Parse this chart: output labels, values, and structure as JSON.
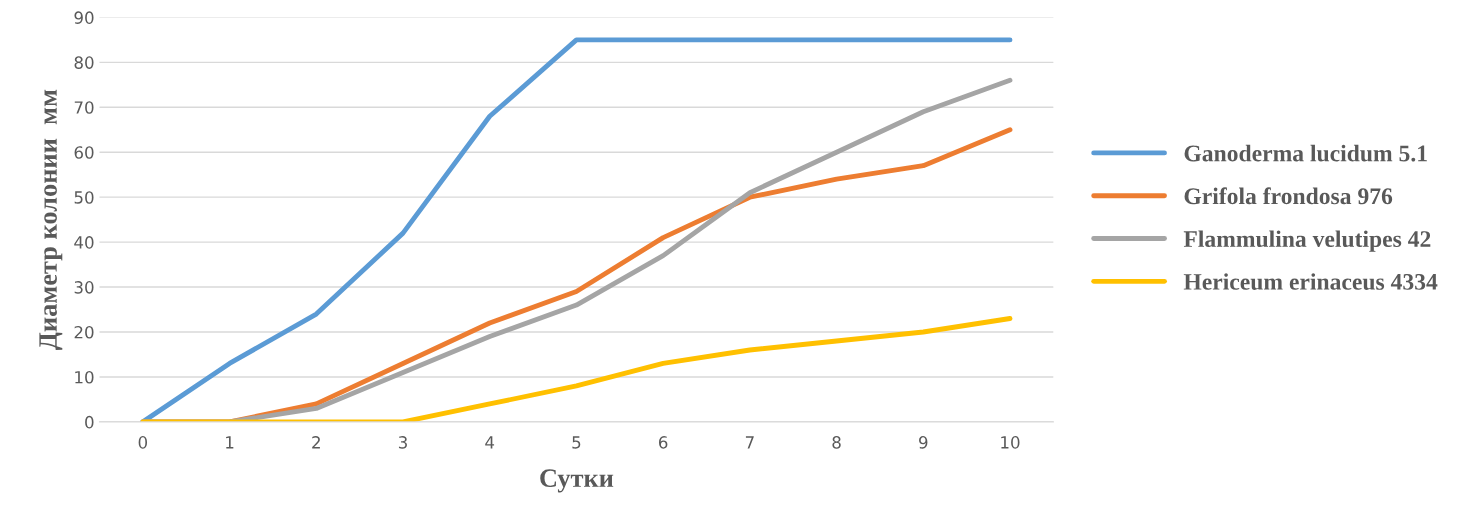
{
  "chart_data": {
    "type": "line",
    "xlabel": "Сутки",
    "ylabel": "Диаметр колонии  мм",
    "categories": [
      "0",
      "1",
      "2",
      "3",
      "4",
      "5",
      "6",
      "7",
      "8",
      "9",
      "10"
    ],
    "series": [
      {
        "name": "Ganoderma lucidum 5.1",
        "color": "#5b9bd5",
        "values": [
          0,
          13,
          24,
          42,
          68,
          85,
          85,
          85,
          85,
          85,
          85
        ]
      },
      {
        "name": "Grifola frondosa 976",
        "color": "#ed7d31",
        "values": [
          0,
          0,
          4,
          13,
          22,
          29,
          41,
          50,
          54,
          57,
          65
        ]
      },
      {
        "name": "Flammulina velutipes 42",
        "color": "#a5a5a5",
        "values": [
          0,
          0,
          3,
          11,
          19,
          26,
          37,
          51,
          60,
          69,
          76
        ]
      },
      {
        "name": "Hericeum erinaceus 4334",
        "color": "#ffc000",
        "values": [
          0,
          0,
          0,
          0,
          4,
          8,
          13,
          16,
          18,
          20,
          23
        ]
      }
    ],
    "ylim": [
      0,
      90
    ],
    "yticks": [
      0,
      10,
      20,
      30,
      40,
      50,
      60,
      70,
      80,
      90
    ],
    "grid": "y",
    "legend": "right",
    "marker": "none",
    "line_style": "solid"
  }
}
